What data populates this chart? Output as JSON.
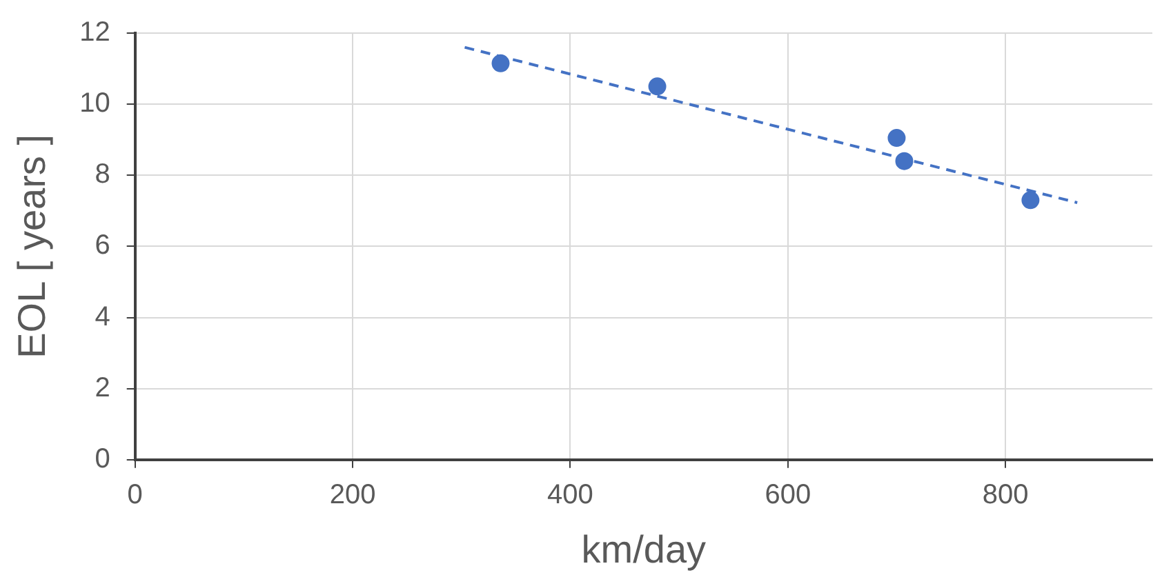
{
  "chart_data": {
    "type": "scatter",
    "xlabel": "km/day",
    "ylabel": "EOL [ years ]",
    "xlim": [
      0,
      935
    ],
    "xticks": [
      0,
      200,
      400,
      600,
      800
    ],
    "ylim": [
      0,
      12
    ],
    "yticks": [
      0,
      2,
      4,
      6,
      8,
      10,
      12
    ],
    "grid": true,
    "marker": "circle",
    "series": [
      {
        "type": "scatter",
        "color": "#4472c4",
        "x": [
          336,
          480,
          700,
          707,
          823
        ],
        "values": [
          11.15,
          10.5,
          9.05,
          8.4,
          7.3
        ]
      },
      {
        "type": "line",
        "color": "#4472c4",
        "line_style": "dashed",
        "marker": "none",
        "x": [
          303,
          866
        ],
        "values": [
          11.6,
          7.23
        ]
      }
    ]
  }
}
